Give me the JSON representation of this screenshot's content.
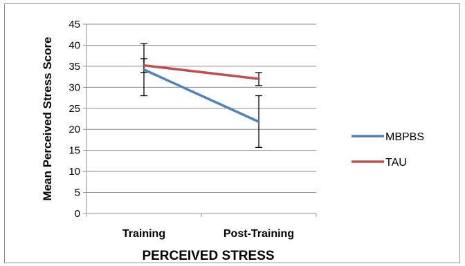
{
  "chart_data": {
    "type": "line",
    "title": "",
    "xlabel": "PERCEIVED STRESS",
    "ylabel": "Mean Perceived Stress Score",
    "categories": [
      "Training",
      "Post-Training"
    ],
    "ylim": [
      0,
      45
    ],
    "yticks": [
      0,
      5,
      10,
      15,
      20,
      25,
      30,
      35,
      40,
      45
    ],
    "grid": true,
    "legend_position": "right",
    "series": [
      {
        "name": "MBPBS",
        "color": "#4f81bd",
        "values": [
          34.2,
          21.8
        ],
        "error_low": [
          28.0,
          15.7
        ],
        "error_high": [
          40.4,
          28.0
        ]
      },
      {
        "name": "TAU",
        "color": "#c0504d",
        "values": [
          35.2,
          32.0
        ],
        "error_low": [
          33.5,
          30.4
        ],
        "error_high": [
          36.8,
          33.5
        ]
      }
    ]
  }
}
